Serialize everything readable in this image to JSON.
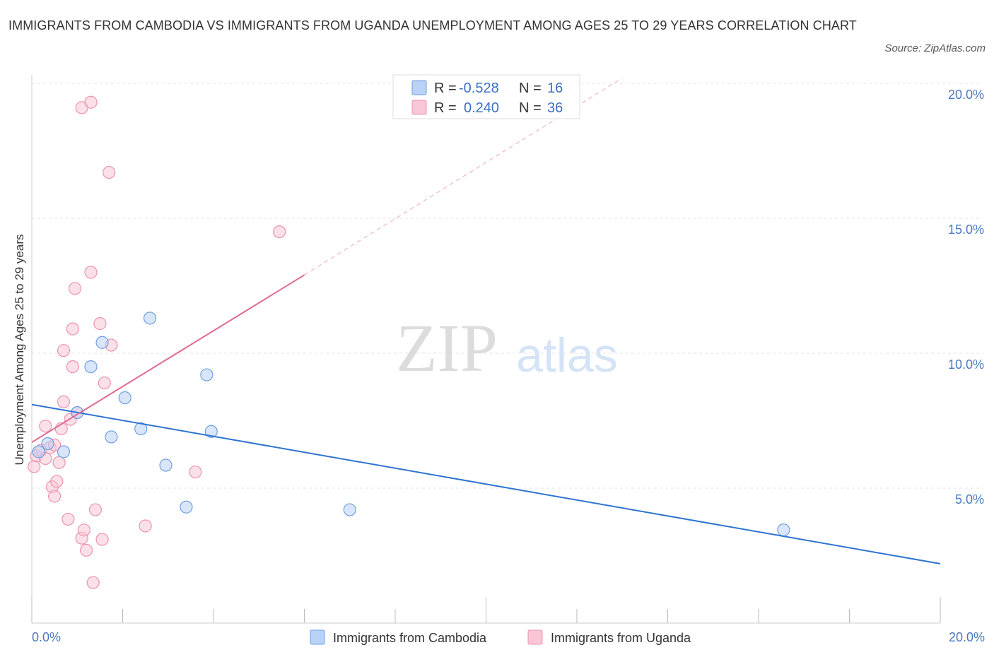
{
  "title": "IMMIGRANTS FROM CAMBODIA VS IMMIGRANTS FROM UGANDA UNEMPLOYMENT AMONG AGES 25 TO 29 YEARS CORRELATION CHART",
  "source": "Source: ZipAtlas.com",
  "watermark": {
    "zip": "ZIP",
    "atlas": "atlas"
  },
  "colors": {
    "cambodia_fill": "#b9d2f5",
    "cambodia_stroke": "#6f9fe0",
    "cambodia_line": "#2f74d0",
    "uganda_fill": "#f9c6d6",
    "uganda_stroke": "#ec93b0",
    "uganda_line": "#e06a95",
    "tick_text": "#4a78c2",
    "grid": "#e3e3e3"
  },
  "legend_box": {
    "rows": [
      {
        "r_label": "R =",
        "r_value": "-0.528",
        "n_label": "N =",
        "n_value": "16"
      },
      {
        "r_label": "R =",
        "r_value": "0.240",
        "n_label": "N =",
        "n_value": "36"
      }
    ]
  },
  "bottom_legend": [
    "Immigrants from Cambodia",
    "Immigrants from Uganda"
  ],
  "chart_data": {
    "type": "scatter",
    "title": "IMMIGRANTS FROM CAMBODIA VS IMMIGRANTS FROM UGANDA UNEMPLOYMENT AMONG AGES 25 TO 29 YEARS CORRELATION CHART",
    "xlabel": "",
    "ylabel": "Unemployment Among Ages 25 to 29 years",
    "xlim": [
      0,
      20
    ],
    "ylim": [
      0,
      20
    ],
    "x_tick_labels": [
      "0.0%",
      "20.0%"
    ],
    "y_ticks": [
      5,
      10,
      15,
      20
    ],
    "y_tick_labels": [
      "5.0%",
      "10.0%",
      "15.0%",
      "20.0%"
    ],
    "grid": true,
    "series": [
      {
        "name": "Immigrants from Cambodia",
        "r": -0.528,
        "n": 16,
        "points": [
          [
            0.15,
            6.35
          ],
          [
            0.35,
            6.65
          ],
          [
            0.7,
            6.35
          ],
          [
            1.0,
            7.8
          ],
          [
            1.3,
            9.5
          ],
          [
            1.55,
            10.4
          ],
          [
            1.75,
            6.9
          ],
          [
            2.05,
            8.35
          ],
          [
            2.4,
            7.2
          ],
          [
            2.6,
            11.3
          ],
          [
            2.95,
            5.85
          ],
          [
            3.4,
            4.3
          ],
          [
            3.85,
            9.2
          ],
          [
            3.95,
            7.1
          ],
          [
            7.0,
            4.2
          ],
          [
            16.55,
            3.45
          ]
        ],
        "trend": {
          "x": [
            0,
            20
          ],
          "y": [
            8.1,
            2.2
          ]
        }
      },
      {
        "name": "Immigrants from Uganda",
        "r": 0.24,
        "n": 36,
        "points": [
          [
            0.05,
            5.8
          ],
          [
            0.1,
            6.2
          ],
          [
            0.2,
            6.4
          ],
          [
            0.3,
            6.1
          ],
          [
            0.4,
            6.5
          ],
          [
            0.5,
            6.6
          ],
          [
            0.3,
            7.3
          ],
          [
            0.45,
            5.05
          ],
          [
            0.5,
            4.7
          ],
          [
            0.55,
            5.25
          ],
          [
            0.6,
            5.95
          ],
          [
            0.65,
            7.2
          ],
          [
            0.7,
            10.1
          ],
          [
            0.7,
            8.2
          ],
          [
            0.8,
            3.85
          ],
          [
            0.9,
            10.9
          ],
          [
            0.9,
            9.5
          ],
          [
            0.85,
            7.55
          ],
          [
            0.95,
            12.4
          ],
          [
            1.0,
            7.8
          ],
          [
            1.1,
            19.1
          ],
          [
            1.1,
            3.15
          ],
          [
            1.15,
            3.45
          ],
          [
            1.2,
            2.7
          ],
          [
            1.3,
            19.3
          ],
          [
            1.3,
            13.0
          ],
          [
            1.35,
            1.5
          ],
          [
            1.4,
            4.2
          ],
          [
            1.5,
            11.1
          ],
          [
            1.55,
            3.1
          ],
          [
            1.6,
            8.9
          ],
          [
            1.7,
            16.7
          ],
          [
            1.75,
            10.3
          ],
          [
            2.5,
            3.6
          ],
          [
            3.6,
            5.6
          ],
          [
            5.45,
            14.5
          ]
        ],
        "trend": {
          "x": [
            0,
            6.0
          ],
          "y": [
            6.7,
            12.9
          ]
        },
        "trend_extension": {
          "x": [
            6.0,
            13.0
          ],
          "y": [
            12.9,
            20.2
          ]
        }
      }
    ]
  }
}
